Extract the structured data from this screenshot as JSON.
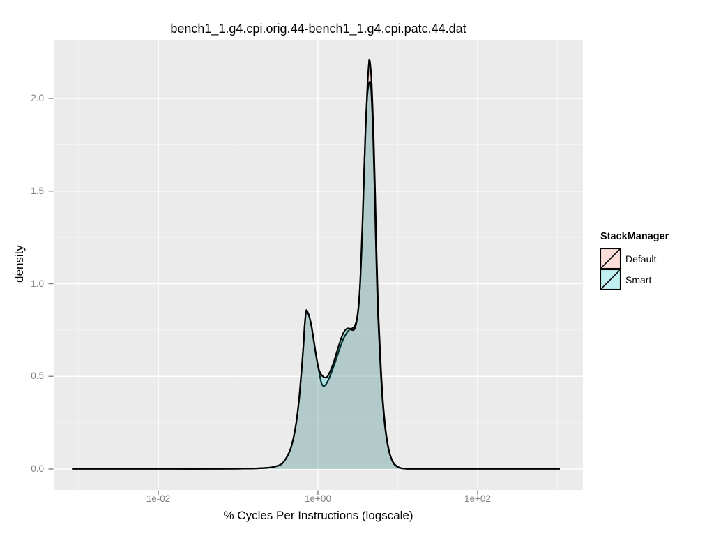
{
  "title": "bench1_1.g4.cpi.orig.44-bench1_1.g4.cpi.patc.44.dat",
  "axes": {
    "x_label": "% Cycles Per Instructions (logscale)",
    "y_label": "density"
  },
  "legend": {
    "title": "StackManager",
    "items": [
      {
        "label": "Default"
      },
      {
        "label": "Smart"
      }
    ]
  },
  "panel": {
    "bg": "#ebebeb",
    "grid_major": "#ffffff",
    "grid_minor": "#f4f4f4",
    "tick_color": "#7f7f7f",
    "tick_label_color": "#7f7f7f"
  },
  "chart_data": {
    "type": "area",
    "subtype": "density",
    "title": "bench1_1.g4.cpi.orig.44-bench1_1.g4.cpi.patc.44.dat",
    "xlabel": "% Cycles Per Instructions (logscale)",
    "ylabel": "density",
    "x_scale": "log10",
    "xlim_log10": [
      -3.32,
      3.32
    ],
    "ylim": [
      -0.11,
      2.31
    ],
    "grid": true,
    "legend_position": "right",
    "legend_title": "StackManager",
    "x_ticks": [
      {
        "label": "1e-02",
        "log10x": -2
      },
      {
        "label": "1e+00",
        "log10x": 0
      },
      {
        "label": "1e+02",
        "log10x": 2
      }
    ],
    "x_minor_log10": [
      -3,
      -1,
      1,
      3
    ],
    "y_ticks": [
      {
        "label": "0.0",
        "value": 0.0
      },
      {
        "label": "0.5",
        "value": 0.5
      },
      {
        "label": "1.0",
        "value": 1.0
      },
      {
        "label": "1.5",
        "value": 1.5
      },
      {
        "label": "2.0",
        "value": 2.0
      }
    ],
    "y_minor": [
      0.25,
      0.75,
      1.25,
      1.75,
      2.25
    ],
    "series": [
      {
        "name": "Default",
        "color": "#F8766D",
        "fill_alpha": 0.25,
        "stroke": "#000000",
        "peak_density": 2.21,
        "points": [
          [
            -3.08,
            0.001
          ],
          [
            -2.6,
            0.001
          ],
          [
            -2.2,
            0.001
          ],
          [
            -1.8,
            0.001
          ],
          [
            -1.4,
            0.001
          ],
          [
            -1.0,
            0.002
          ],
          [
            -0.8,
            0.003
          ],
          [
            -0.65,
            0.006
          ],
          [
            -0.55,
            0.012
          ],
          [
            -0.463,
            0.025
          ],
          [
            -0.419,
            0.045
          ],
          [
            -0.376,
            0.075
          ],
          [
            -0.341,
            0.112
          ],
          [
            -0.306,
            0.168
          ],
          [
            -0.271,
            0.252
          ],
          [
            -0.236,
            0.377
          ],
          [
            -0.21,
            0.508
          ],
          [
            -0.183,
            0.655
          ],
          [
            -0.166,
            0.776
          ],
          [
            -0.148,
            0.852
          ],
          [
            -0.131,
            0.848
          ],
          [
            -0.105,
            0.817
          ],
          [
            -0.079,
            0.765
          ],
          [
            -0.052,
            0.693
          ],
          [
            -0.026,
            0.621
          ],
          [
            0.0,
            0.557
          ],
          [
            0.026,
            0.497
          ],
          [
            0.044,
            0.463
          ],
          [
            0.061,
            0.45
          ],
          [
            0.079,
            0.448
          ],
          [
            0.105,
            0.46
          ],
          [
            0.14,
            0.49
          ],
          [
            0.175,
            0.527
          ],
          [
            0.218,
            0.58
          ],
          [
            0.262,
            0.636
          ],
          [
            0.306,
            0.689
          ],
          [
            0.349,
            0.727
          ],
          [
            0.393,
            0.751
          ],
          [
            0.428,
            0.759
          ],
          [
            0.454,
            0.768
          ],
          [
            0.48,
            0.795
          ],
          [
            0.498,
            0.84
          ],
          [
            0.515,
            0.911
          ],
          [
            0.533,
            1.032
          ],
          [
            0.55,
            1.213
          ],
          [
            0.568,
            1.439
          ],
          [
            0.585,
            1.684
          ],
          [
            0.603,
            1.898
          ],
          [
            0.62,
            2.072
          ],
          [
            0.638,
            2.192
          ],
          [
            0.646,
            2.207
          ],
          [
            0.655,
            2.185
          ],
          [
            0.668,
            2.117
          ],
          [
            0.681,
            1.992
          ],
          [
            0.699,
            1.778
          ],
          [
            0.716,
            1.495
          ],
          [
            0.734,
            1.175
          ],
          [
            0.751,
            0.911
          ],
          [
            0.769,
            0.723
          ],
          [
            0.795,
            0.497
          ],
          [
            0.821,
            0.328
          ],
          [
            0.856,
            0.185
          ],
          [
            0.9,
            0.083
          ],
          [
            0.952,
            0.03
          ],
          [
            1.02,
            0.008
          ],
          [
            1.1,
            0.002
          ],
          [
            1.3,
            0.001
          ],
          [
            1.7,
            0.001
          ],
          [
            2.2,
            0.001
          ],
          [
            2.7,
            0.001
          ],
          [
            3.03,
            0.001
          ]
        ]
      },
      {
        "name": "Smart",
        "color": "#00BFC4",
        "fill_alpha": 0.25,
        "stroke": "#000000",
        "peak_density": 2.09,
        "points": [
          [
            -3.08,
            0.001
          ],
          [
            -2.6,
            0.001
          ],
          [
            -2.2,
            0.001
          ],
          [
            -1.8,
            0.001
          ],
          [
            -1.4,
            0.001
          ],
          [
            -1.0,
            0.002
          ],
          [
            -0.8,
            0.003
          ],
          [
            -0.65,
            0.006
          ],
          [
            -0.55,
            0.012
          ],
          [
            -0.463,
            0.025
          ],
          [
            -0.419,
            0.045
          ],
          [
            -0.376,
            0.075
          ],
          [
            -0.341,
            0.112
          ],
          [
            -0.306,
            0.168
          ],
          [
            -0.271,
            0.252
          ],
          [
            -0.236,
            0.377
          ],
          [
            -0.21,
            0.508
          ],
          [
            -0.183,
            0.655
          ],
          [
            -0.166,
            0.776
          ],
          [
            -0.148,
            0.852
          ],
          [
            -0.131,
            0.848
          ],
          [
            -0.105,
            0.817
          ],
          [
            -0.079,
            0.765
          ],
          [
            -0.052,
            0.693
          ],
          [
            -0.026,
            0.621
          ],
          [
            0.0,
            0.557
          ],
          [
            0.017,
            0.531
          ],
          [
            0.044,
            0.508
          ],
          [
            0.07,
            0.497
          ],
          [
            0.096,
            0.493
          ],
          [
            0.122,
            0.501
          ],
          [
            0.157,
            0.531
          ],
          [
            0.192,
            0.569
          ],
          [
            0.227,
            0.618
          ],
          [
            0.262,
            0.667
          ],
          [
            0.297,
            0.712
          ],
          [
            0.323,
            0.738
          ],
          [
            0.349,
            0.753
          ],
          [
            0.376,
            0.759
          ],
          [
            0.402,
            0.757
          ],
          [
            0.428,
            0.75
          ],
          [
            0.454,
            0.753
          ],
          [
            0.472,
            0.772
          ],
          [
            0.489,
            0.806
          ],
          [
            0.507,
            0.866
          ],
          [
            0.524,
            0.968
          ],
          [
            0.541,
            1.13
          ],
          [
            0.559,
            1.345
          ],
          [
            0.576,
            1.582
          ],
          [
            0.594,
            1.808
          ],
          [
            0.611,
            1.974
          ],
          [
            0.629,
            2.06
          ],
          [
            0.65,
            2.09
          ],
          [
            0.664,
            2.064
          ],
          [
            0.677,
            1.958
          ],
          [
            0.69,
            1.815
          ],
          [
            0.707,
            1.544
          ],
          [
            0.725,
            1.232
          ],
          [
            0.742,
            0.949
          ],
          [
            0.76,
            0.761
          ],
          [
            0.786,
            0.527
          ],
          [
            0.812,
            0.354
          ],
          [
            0.847,
            0.203
          ],
          [
            0.891,
            0.094
          ],
          [
            0.943,
            0.034
          ],
          [
            1.01,
            0.009
          ],
          [
            1.1,
            0.002
          ],
          [
            1.3,
            0.001
          ],
          [
            1.7,
            0.001
          ],
          [
            2.2,
            0.001
          ],
          [
            2.7,
            0.001
          ],
          [
            3.03,
            0.001
          ]
        ]
      }
    ]
  }
}
